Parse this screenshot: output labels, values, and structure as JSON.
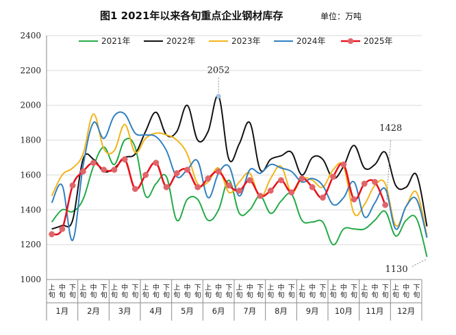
{
  "title": "图1  2021年以来各旬重点企业钢材库存",
  "unit": "单位：万吨",
  "chart_data": {
    "type": "line",
    "title": "图1  2021年以来各旬重点企业钢材库存",
    "unit_label": "单位：万吨",
    "ylim": [
      1000,
      2400
    ],
    "yticks": [
      1000,
      1200,
      1400,
      1600,
      1800,
      2000,
      2200,
      2400
    ],
    "grid": true,
    "legend_position": "top",
    "x_tick_labels": [
      "上旬",
      "中旬",
      "下旬"
    ],
    "months": [
      "1月",
      "2月",
      "3月",
      "4月",
      "5月",
      "6月",
      "7月",
      "8月",
      "9月",
      "10月",
      "11月",
      "12月"
    ],
    "series": [
      {
        "name": "2021年",
        "color": "#22aa44",
        "marker": false,
        "values": [
          1330,
          1400,
          1390,
          1460,
          1650,
          1760,
          1660,
          1800,
          1760,
          1480,
          1550,
          1590,
          1340,
          1460,
          1460,
          1340,
          1400,
          1570,
          1380,
          1400,
          1480,
          1380,
          1450,
          1490,
          1340,
          1330,
          1330,
          1200,
          1290,
          1290,
          1290,
          1340,
          1390,
          1250,
          1340,
          1350,
          1130
        ]
      },
      {
        "name": "2022年",
        "color": "#111111",
        "marker": false,
        "values": [
          1290,
          1310,
          1340,
          1690,
          1690,
          1620,
          1640,
          1700,
          1720,
          1850,
          1960,
          1830,
          1850,
          2000,
          1800,
          1850,
          2052,
          1690,
          1780,
          1900,
          1630,
          1690,
          1710,
          1730,
          1600,
          1700,
          1690,
          1580,
          1650,
          1770,
          1640,
          1660,
          1730,
          1540,
          1530,
          1600,
          1305
        ]
      },
      {
        "name": "2023年",
        "color": "#f2b418",
        "marker": false,
        "values": [
          1480,
          1600,
          1640,
          1720,
          1950,
          1750,
          1740,
          1890,
          1730,
          1810,
          1840,
          1830,
          1800,
          1720,
          1550,
          1560,
          1640,
          1500,
          1560,
          1610,
          1470,
          1580,
          1650,
          1500,
          1580,
          1570,
          1530,
          1630,
          1650,
          1380,
          1430,
          1540,
          1550,
          1310,
          1420,
          1500,
          1250
        ]
      },
      {
        "name": "2024年",
        "color": "#2f7fc1",
        "marker": false,
        "values": [
          1440,
          1540,
          1225,
          1650,
          1900,
          1810,
          1940,
          1950,
          1840,
          1830,
          1820,
          1740,
          1590,
          1630,
          1680,
          1470,
          1610,
          1650,
          1480,
          1630,
          1610,
          1660,
          1640,
          1620,
          1560,
          1580,
          1540,
          1430,
          1470,
          1560,
          1360,
          1440,
          1520,
          1290,
          1420,
          1460,
          1240
        ]
      },
      {
        "name": "2025年",
        "color": "#e8121c",
        "marker": true,
        "marker_color": "#e0656a",
        "values": [
          1260,
          1290,
          1540,
          1620,
          1670,
          1630,
          1630,
          1690,
          1520,
          1600,
          1670,
          1530,
          1610,
          1630,
          1530,
          1580,
          1620,
          1540,
          1510,
          1570,
          1480,
          1510,
          1570,
          1500,
          1580,
          1530,
          1470,
          1590,
          1660,
          1460,
          1550,
          1560,
          1428
        ]
      }
    ],
    "annotations": [
      {
        "text": "2052",
        "series": "2022年",
        "index": 16
      },
      {
        "text": "1428",
        "series": "2025年",
        "index": 32
      },
      {
        "text": "1130",
        "series": "2021年",
        "index": 36
      }
    ]
  }
}
